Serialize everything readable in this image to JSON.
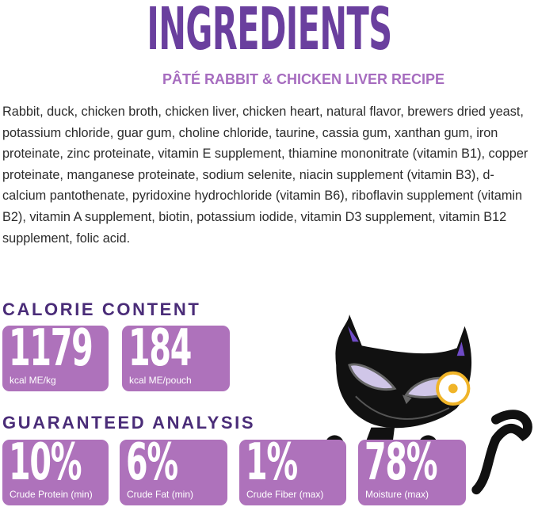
{
  "title": "INGREDIENTS",
  "subtitle": "PÂTÉ RABBIT & CHICKEN LIVER RECIPE",
  "ingredients": "Rabbit, duck, chicken broth, chicken liver, chicken heart, natural flavor, brewers dried yeast, potassium chloride, guar gum, choline chloride, taurine, cassia gum, xanthan gum, iron proteinate, zinc proteinate, vitamin E supplement, thiamine mononitrate (vitamin B1), copper proteinate, manganese proteinate, sodium selenite, niacin supplement (vitamin B3), d-calcium pantothenate, pyridoxine hydrochloride (vitamin B6), riboflavin supplement (vitamin B2), vitamin A supplement, biotin, potassium iodide, vitamin D3 supplement, vitamin B12 supplement, folic acid.",
  "calorie": {
    "heading": "CALORIE CONTENT",
    "items": [
      {
        "value": "1179",
        "label": "kcal ME/kg"
      },
      {
        "value": "184",
        "label": "kcal ME/pouch"
      }
    ]
  },
  "analysis": {
    "heading": "GUARANTEED ANALYSIS",
    "items": [
      {
        "value": "10%",
        "label": "Crude Protein (min)"
      },
      {
        "value": "6%",
        "label": "Crude Fat (min)"
      },
      {
        "value": "1%",
        "label": "Crude Fiber (max)"
      },
      {
        "value": "78%",
        "label": "Moisture (max)"
      }
    ]
  },
  "colors": {
    "title": "#6a3f9e",
    "subtitle": "#a66cbf",
    "heading": "#4a2c78",
    "box": "#ae72bb"
  }
}
